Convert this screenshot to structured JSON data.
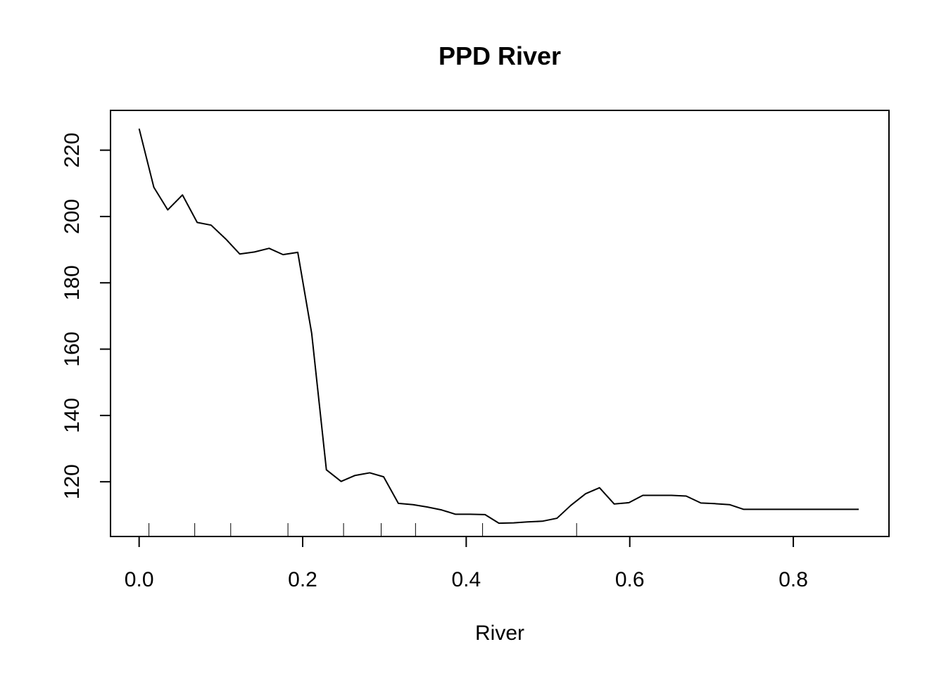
{
  "chart_data": {
    "type": "line",
    "title": "PPD River",
    "xlabel": "River",
    "ylabel": "",
    "xlim": [
      -0.035,
      0.917
    ],
    "ylim": [
      103.5,
      232
    ],
    "x_ticks": [
      0.0,
      0.2,
      0.4,
      0.6,
      0.8
    ],
    "x_tick_labels": [
      "0.0",
      "0.2",
      "0.4",
      "0.6",
      "0.8"
    ],
    "y_ticks": [
      120,
      140,
      160,
      180,
      200,
      220
    ],
    "y_tick_labels": [
      "120",
      "140",
      "160",
      "180",
      "200",
      "220"
    ],
    "grid": false,
    "legend": "none",
    "line_color": "#000000",
    "series": [
      {
        "x": [
          0.0,
          0.018,
          0.035,
          0.053,
          0.071,
          0.088,
          0.106,
          0.123,
          0.141,
          0.159,
          0.176,
          0.194,
          0.211,
          0.229,
          0.247,
          0.264,
          0.282,
          0.299,
          0.317,
          0.335,
          0.352,
          0.37,
          0.387,
          0.405,
          0.423,
          0.44,
          0.458,
          0.475,
          0.493,
          0.511,
          0.528,
          0.546,
          0.563,
          0.581,
          0.599,
          0.616,
          0.634,
          0.651,
          0.669,
          0.687,
          0.704,
          0.722,
          0.739,
          0.757,
          0.775,
          0.792,
          0.81,
          0.827,
          0.845,
          0.863,
          0.88
        ],
        "values": [
          226.5,
          208.8,
          202.0,
          206.5,
          198.2,
          197.4,
          193.2,
          188.7,
          189.3,
          190.4,
          188.5,
          189.2,
          164.8,
          123.6,
          120.1,
          121.9,
          122.7,
          121.5,
          113.5,
          113.1,
          112.4,
          111.5,
          110.2,
          110.2,
          110.1,
          107.5,
          107.6,
          107.9,
          108.1,
          109.0,
          112.9,
          116.4,
          118.2,
          113.3,
          113.7,
          115.9,
          115.9,
          115.9,
          115.7,
          113.6,
          113.4,
          113.1,
          111.7,
          111.7,
          111.7,
          111.7,
          111.7,
          111.7,
          111.7,
          111.7,
          111.7
        ]
      }
    ],
    "rug_x": [
      0.012,
      0.068,
      0.112,
      0.182,
      0.25,
      0.296,
      0.338,
      0.42,
      0.535
    ]
  }
}
